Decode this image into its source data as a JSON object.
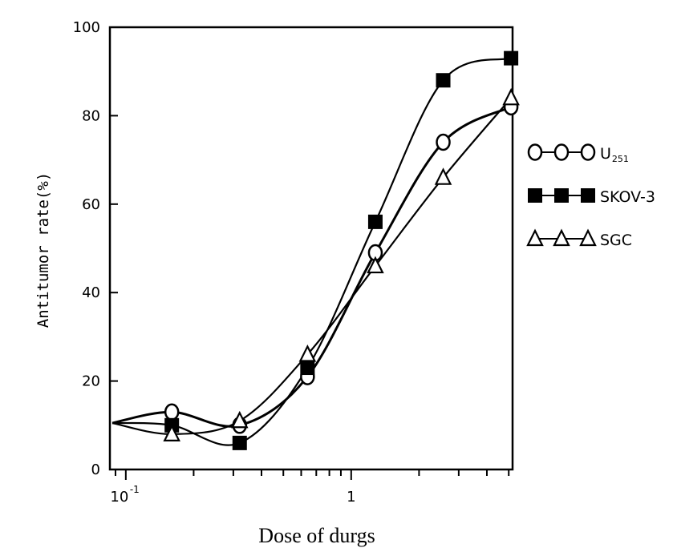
{
  "chart_data": {
    "type": "line",
    "title": "",
    "xlabel": "Dose of durgs",
    "ylabel": "Antitumor rate(%)",
    "x_scale": "log",
    "xlim": [
      0.085,
      5.2
    ],
    "ylim": [
      0,
      100
    ],
    "yticks": [
      0,
      20,
      40,
      60,
      80,
      100
    ],
    "xtick_labels": [
      {
        "value": 0.1,
        "base": "10",
        "exp": "-1"
      },
      {
        "value": 1,
        "base": "1",
        "exp": ""
      }
    ],
    "grid": false,
    "legend_position": "right",
    "series": [
      {
        "name": "U",
        "name_sub": "251",
        "marker": "circle-open",
        "legend_prefix": "O-O-O",
        "x": [
          0.16,
          0.32,
          0.64,
          1.28,
          2.56,
          5.12
        ],
        "y": [
          13,
          10,
          21,
          49,
          74,
          82
        ]
      },
      {
        "name": "SKOV-3",
        "marker": "square-filled",
        "legend_prefix": "■-■-■",
        "x": [
          0.16,
          0.32,
          0.64,
          1.28,
          2.56,
          5.12
        ],
        "y": [
          10,
          6,
          23,
          56,
          88,
          93
        ]
      },
      {
        "name": "SGC",
        "marker": "triangle-open",
        "legend_prefix": "Δ-Δ-Δ",
        "x": [
          0.16,
          0.32,
          0.64,
          1.28,
          2.56,
          5.12
        ],
        "y": [
          8,
          11,
          26,
          46,
          66,
          84
        ]
      }
    ]
  }
}
